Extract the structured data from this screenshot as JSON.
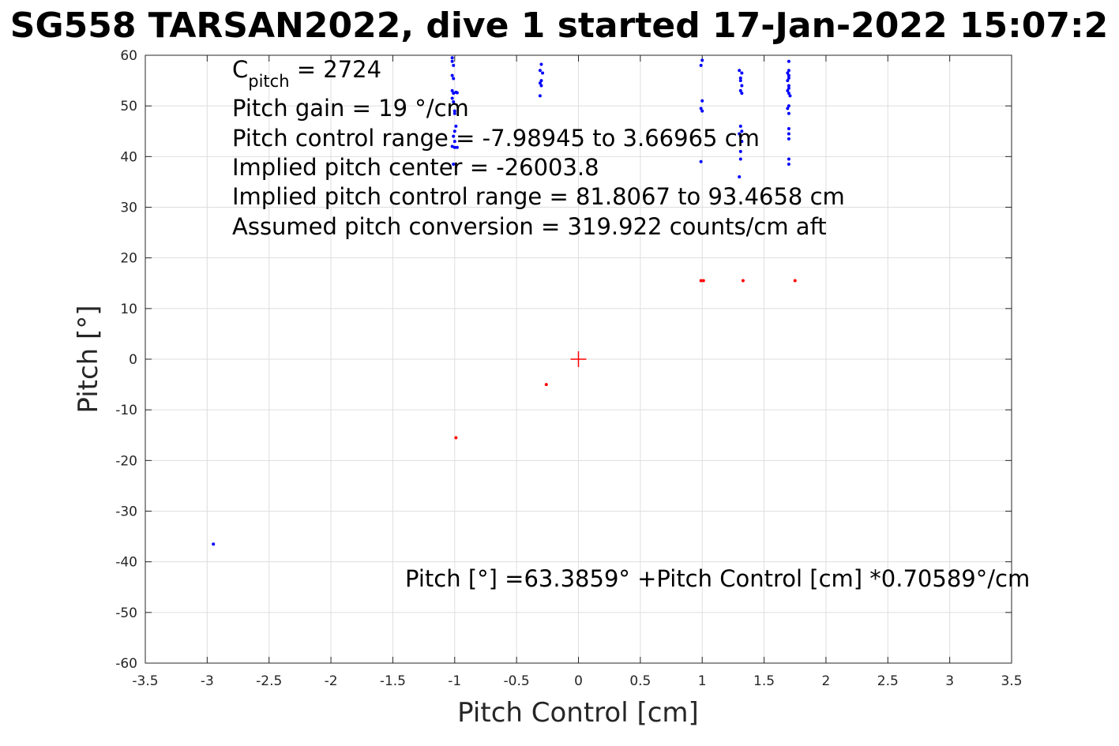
{
  "chart_data": {
    "type": "scatter",
    "title": "SG558 TARSAN2022, dive 1 started 17-Jan-2022 15:07:2",
    "xlabel": "Pitch Control [cm]",
    "ylabel": "Pitch [°]",
    "xlim": [
      -3.5,
      3.5
    ],
    "ylim": [
      -60,
      60
    ],
    "xticks": [
      -3.5,
      -3,
      -2.5,
      -2,
      -1.5,
      -1,
      -0.5,
      0,
      0.5,
      1,
      1.5,
      2,
      2.5,
      3,
      3.5
    ],
    "xtick_labels": [
      "-3.5",
      "-3",
      "-2.5",
      "-2",
      "-1.5",
      "-1",
      "-0.5",
      "0",
      "0.5",
      "1",
      "1.5",
      "2",
      "2.5",
      "3",
      "3.5"
    ],
    "yticks": [
      60,
      50,
      40,
      30,
      20,
      10,
      0,
      -10,
      -20,
      -30,
      -40,
      -50,
      -60
    ],
    "ytick_labels": [
      "60",
      "50",
      "40",
      "30",
      "20",
      "10",
      "0",
      "-10",
      "-20",
      "-30",
      "-40",
      "-50",
      "-60"
    ],
    "grid": true,
    "colors": {
      "blue_series": "#0000ff",
      "red_series": "#ff0000",
      "grid": "#dedede",
      "axes": "#262626"
    },
    "series": [
      {
        "color": "#0000ff",
        "points": [
          [
            -2.95,
            -36.5
          ],
          [
            -1.02,
            59.5
          ],
          [
            -1.02,
            58.8
          ],
          [
            -1.01,
            58.0
          ],
          [
            -1.02,
            56.0
          ],
          [
            -1.01,
            55.4
          ],
          [
            -1.02,
            53.0
          ],
          [
            -1.01,
            52.5
          ],
          [
            -0.99,
            52.7
          ],
          [
            -0.98,
            52.6
          ],
          [
            -1.02,
            51.5
          ],
          [
            -1.01,
            50.8
          ],
          [
            -1.0,
            49.0
          ],
          [
            -1.0,
            48.5
          ],
          [
            -0.99,
            46.0
          ],
          [
            -1.0,
            45.0
          ],
          [
            -1.01,
            44.0
          ],
          [
            -1.0,
            43.0
          ],
          [
            -1.02,
            42.0
          ],
          [
            -1.0,
            41.8
          ],
          [
            -0.98,
            41.8
          ],
          [
            -1.01,
            38.5
          ],
          [
            -0.3,
            58.2
          ],
          [
            -0.31,
            57.0
          ],
          [
            -0.29,
            56.5
          ],
          [
            -0.3,
            55.0
          ],
          [
            -0.31,
            54.5
          ],
          [
            -0.3,
            54.0
          ],
          [
            -0.31,
            52.0
          ],
          [
            1.0,
            59.0
          ],
          [
            0.99,
            58.0
          ],
          [
            1.0,
            51.0
          ],
          [
            0.99,
            49.5
          ],
          [
            1.0,
            49.0
          ],
          [
            0.99,
            39.0
          ],
          [
            1.3,
            57.0
          ],
          [
            1.32,
            56.5
          ],
          [
            1.31,
            55.5
          ],
          [
            1.31,
            55.0
          ],
          [
            1.32,
            54.0
          ],
          [
            1.31,
            53.0
          ],
          [
            1.32,
            52.5
          ],
          [
            1.31,
            46.0
          ],
          [
            1.32,
            45.0
          ],
          [
            1.3,
            44.5
          ],
          [
            1.31,
            44.0
          ],
          [
            1.32,
            43.0
          ],
          [
            1.31,
            41.0
          ],
          [
            1.31,
            39.5
          ],
          [
            1.3,
            36.0
          ],
          [
            1.7,
            58.8
          ],
          [
            1.7,
            57.0
          ],
          [
            1.69,
            56.5
          ],
          [
            1.7,
            56.0
          ],
          [
            1.7,
            55.5
          ],
          [
            1.69,
            55.0
          ],
          [
            1.7,
            54.0
          ],
          [
            1.7,
            53.5
          ],
          [
            1.69,
            53.0
          ],
          [
            1.7,
            52.5
          ],
          [
            1.71,
            52.0
          ],
          [
            1.7,
            50.0
          ],
          [
            1.69,
            49.5
          ],
          [
            1.7,
            48.5
          ],
          [
            1.7,
            45.5
          ],
          [
            1.7,
            44.5
          ],
          [
            1.7,
            43.5
          ],
          [
            1.7,
            39.5
          ],
          [
            1.7,
            38.5
          ]
        ]
      },
      {
        "color": "#ff0000",
        "points": [
          [
            -0.99,
            -15.5
          ],
          [
            -0.26,
            -5.0
          ],
          [
            0.99,
            15.5
          ],
          [
            1.01,
            15.5
          ],
          [
            1.33,
            15.5
          ],
          [
            1.75,
            15.5
          ]
        ]
      }
    ],
    "center_marker": {
      "x": 0,
      "y": 0,
      "color": "#ff0000"
    },
    "annotations": {
      "c_pitch_main": "C",
      "c_pitch_sub": "pitch",
      "c_pitch_value": " = 2724",
      "pitch_gain": "Pitch gain = 19 °/cm",
      "control_range": "Pitch control range = -7.98945 to 3.66965 cm",
      "implied_center": "Implied pitch center = -26003.8",
      "implied_range": "Implied pitch control range = 81.8067 to 93.4658 cm",
      "conversion": "Assumed pitch conversion = 319.922 counts/cm aft",
      "fit_equation": "Pitch [°] =63.3859° +Pitch Control [cm] *0.70589°/cm"
    }
  }
}
